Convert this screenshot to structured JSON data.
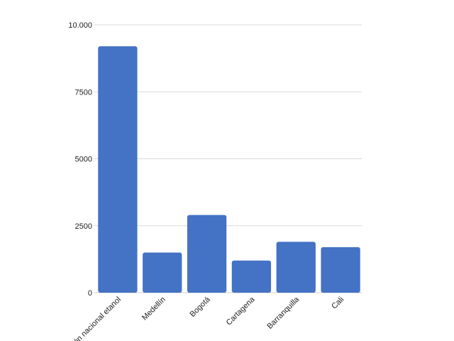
{
  "chart_data": {
    "type": "bar",
    "title": "",
    "xlabel": "",
    "ylabel": "",
    "categories": [
      "ión nacional etanol",
      "Medellín",
      "Bogotá",
      "Cartagena",
      "Barranquilla",
      "Cali"
    ],
    "values": [
      9200,
      1500,
      2900,
      1200,
      1900,
      1700
    ],
    "ylim": [
      0,
      10000
    ],
    "yticks": [
      0,
      2500,
      5000,
      7500,
      10000
    ],
    "ytick_labels": [
      "0",
      "2500",
      "5000",
      "7500",
      "10.000"
    ],
    "grid": true,
    "legend": "none",
    "bar_color": "#4472c4"
  }
}
